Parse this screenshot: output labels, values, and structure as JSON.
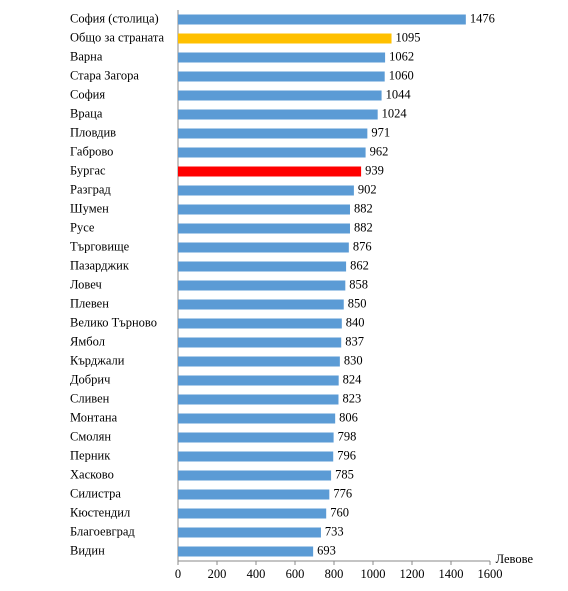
{
  "chart_data": {
    "type": "bar",
    "orientation": "horizontal",
    "categories": [
      "София (столица)",
      "Общо за страната",
      "Варна",
      "Стара Загора",
      "София",
      "Враца",
      "Пловдив",
      "Габрово",
      "Бургас",
      "Разград",
      "Шумен",
      "Русе",
      "Търговище",
      "Пазарджик",
      "Ловеч",
      "Плевен",
      "Велико Търново",
      "Ямбол",
      "Кърджали",
      "Добрич",
      "Сливен",
      "Монтана",
      "Смолян",
      "Перник",
      "Хасково",
      "Силистра",
      "Кюстендил",
      "Благоевград",
      "Видин"
    ],
    "values": [
      1476,
      1095,
      1062,
      1060,
      1044,
      1024,
      971,
      962,
      939,
      902,
      882,
      882,
      876,
      862,
      858,
      850,
      840,
      837,
      830,
      824,
      823,
      806,
      798,
      796,
      785,
      776,
      760,
      733,
      693
    ],
    "colors": [
      "#5b9bd5",
      "#ffc000",
      "#5b9bd5",
      "#5b9bd5",
      "#5b9bd5",
      "#5b9bd5",
      "#5b9bd5",
      "#5b9bd5",
      "#ff0000",
      "#5b9bd5",
      "#5b9bd5",
      "#5b9bd5",
      "#5b9bd5",
      "#5b9bd5",
      "#5b9bd5",
      "#5b9bd5",
      "#5b9bd5",
      "#5b9bd5",
      "#5b9bd5",
      "#5b9bd5",
      "#5b9bd5",
      "#5b9bd5",
      "#5b9bd5",
      "#5b9bd5",
      "#5b9bd5",
      "#5b9bd5",
      "#5b9bd5",
      "#5b9bd5",
      "#5b9bd5"
    ],
    "x_label": "Левове",
    "xlim": [
      0,
      1600
    ],
    "xticks": [
      0,
      200,
      400,
      600,
      800,
      1000,
      1200,
      1400,
      1600
    ],
    "grid": false
  }
}
